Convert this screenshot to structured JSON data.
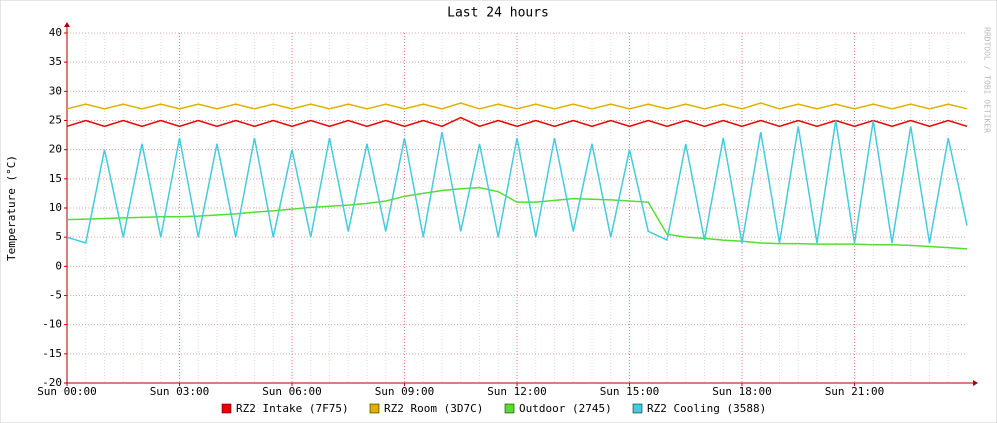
{
  "chart_data": {
    "type": "line",
    "title": "Last 24 hours",
    "y_label": "Temperature (°C)",
    "watermark": "RRDTOOL / TOBI OETIKER",
    "x": [
      0,
      0.5,
      1,
      1.5,
      2,
      2.5,
      3,
      3.5,
      4,
      4.5,
      5,
      5.5,
      6,
      6.5,
      7,
      7.5,
      8,
      8.5,
      9,
      9.5,
      10,
      10.5,
      11,
      11.5,
      12,
      12.5,
      13,
      13.5,
      14,
      14.5,
      15,
      15.5,
      16,
      16.5,
      17,
      17.5,
      18,
      18.5,
      19,
      19.5,
      20,
      20.5,
      21,
      21.5,
      22,
      22.5,
      23,
      23.5,
      24
    ],
    "xlim": [
      0,
      24
    ],
    "xticks": [
      {
        "value": 0,
        "label": "Sun 00:00"
      },
      {
        "value": 3,
        "label": "Sun 03:00"
      },
      {
        "value": 6,
        "label": "Sun 06:00"
      },
      {
        "value": 9,
        "label": "Sun 09:00"
      },
      {
        "value": 12,
        "label": "Sun 12:00"
      },
      {
        "value": 15,
        "label": "Sun 15:00"
      },
      {
        "value": 18,
        "label": "Sun 18:00"
      },
      {
        "value": 21,
        "label": "Sun 21:00"
      }
    ],
    "ylim": [
      -20,
      40
    ],
    "yticks": [
      -20,
      -15,
      -10,
      -5,
      0,
      5,
      10,
      15,
      20,
      25,
      30,
      35,
      40
    ],
    "grid": true,
    "series": [
      {
        "name": "RZ2 Intake (7F75)",
        "color": "#ee0000",
        "values": [
          24,
          25,
          24,
          25,
          24,
          25,
          24,
          25,
          24,
          25,
          24,
          25,
          24,
          25,
          24,
          25,
          24,
          25,
          24,
          25,
          24,
          25.5,
          24,
          25,
          24,
          25,
          24,
          25,
          24,
          25,
          24,
          25,
          24,
          25,
          24,
          25,
          24,
          25,
          24,
          25,
          24,
          25,
          24,
          25,
          24,
          25,
          24,
          25,
          24
        ]
      },
      {
        "name": "RZ2 Room (3D7C)",
        "color": "#e0b000",
        "values": [
          27,
          27.8,
          27,
          27.8,
          27,
          27.8,
          27,
          27.8,
          27,
          27.8,
          27,
          27.8,
          27,
          27.8,
          27,
          27.8,
          27,
          27.8,
          27,
          27.8,
          27,
          28,
          27,
          27.8,
          27,
          27.8,
          27,
          27.8,
          27,
          27.8,
          27,
          27.8,
          27,
          27.8,
          27,
          27.8,
          27,
          28,
          27,
          27.8,
          27,
          27.8,
          27,
          27.8,
          27,
          27.8,
          27,
          27.8,
          27
        ]
      },
      {
        "name": "Outdoor (2745)",
        "color": "#55dd33",
        "values": [
          8,
          8.1,
          8.2,
          8.3,
          8.4,
          8.5,
          8.5,
          8.6,
          8.8,
          9,
          9.3,
          9.5,
          9.8,
          10.1,
          10.3,
          10.5,
          10.8,
          11.2,
          12,
          12.5,
          13,
          13.3,
          13.5,
          12.8,
          11,
          11,
          11.3,
          11.6,
          11.5,
          11.4,
          11.2,
          11,
          5.5,
          5,
          4.8,
          4.5,
          4.3,
          4,
          3.9,
          3.9,
          3.8,
          3.8,
          3.8,
          3.7,
          3.7,
          3.6,
          3.4,
          3.2,
          3
        ]
      },
      {
        "name": "RZ2 Cooling (3588)",
        "color": "#44ccdd",
        "values": [
          5,
          4,
          20,
          5,
          21,
          5,
          22,
          5,
          21,
          5,
          22,
          5,
          20,
          5,
          22,
          6,
          21,
          6,
          22,
          5,
          23,
          6,
          21,
          5,
          22,
          5,
          22,
          6,
          21,
          5,
          20,
          6,
          4.5,
          21,
          4.5,
          22,
          4,
          23,
          4,
          24,
          4,
          25,
          4,
          25,
          4,
          24,
          4,
          22,
          7
        ]
      }
    ],
    "legend": "bottom"
  }
}
